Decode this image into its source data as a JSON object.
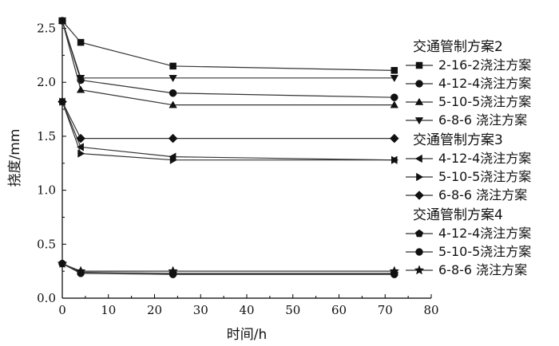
{
  "chart_data": {
    "type": "line",
    "xlabel": "时间/h",
    "ylabel": "挠度/mm",
    "xlim": [
      0,
      80
    ],
    "ylim": [
      0,
      2.6
    ],
    "x_ticks": [
      0,
      10,
      20,
      30,
      40,
      50,
      60,
      70,
      80
    ],
    "y_ticks": [
      0.0,
      0.5,
      1.0,
      1.5,
      2.0,
      2.5
    ],
    "y_tick_labels": [
      "0.0",
      "0.5",
      "1.0",
      "1.5",
      "2.0",
      "2.5"
    ],
    "x_tick_labels": [
      "0",
      "10",
      "20",
      "30",
      "40",
      "50",
      "60",
      "70",
      "80"
    ],
    "grid": false,
    "legend_position": "right",
    "groups": [
      {
        "title": "交通管制方案2",
        "series": [
          {
            "name": "2-16-2浇注方案",
            "marker": "square",
            "x": [
              0,
              4,
              24,
              72
            ],
            "y": [
              2.57,
              2.37,
              2.15,
              2.11
            ]
          },
          {
            "name": "4-12-4浇注方案",
            "marker": "circle",
            "x": [
              0,
              4,
              24,
              72
            ],
            "y": [
              2.57,
              2.02,
              1.9,
              1.86
            ]
          },
          {
            "name": "5-10-5浇注方案",
            "marker": "triangle-up",
            "x": [
              0,
              4,
              24,
              72
            ],
            "y": [
              2.57,
              1.93,
              1.79,
              1.79
            ]
          },
          {
            "name": "6-8-6  浇注方案",
            "marker": "triangle-down",
            "x": [
              0,
              4,
              24,
              72
            ],
            "y": [
              2.57,
              2.04,
              2.04,
              2.04
            ]
          }
        ]
      },
      {
        "title": "交通管制方案3",
        "series": [
          {
            "name": "4-12-4浇注方案",
            "marker": "triangle-left",
            "x": [
              0,
              4,
              24,
              72
            ],
            "y": [
              1.82,
              1.4,
              1.31,
              1.28
            ]
          },
          {
            "name": "5-10-5浇注方案",
            "marker": "triangle-right",
            "x": [
              0,
              4,
              24,
              72
            ],
            "y": [
              1.82,
              1.34,
              1.28,
              1.28
            ]
          },
          {
            "name": "6-8-6  浇注方案",
            "marker": "diamond",
            "x": [
              0,
              4,
              24,
              72
            ],
            "y": [
              1.82,
              1.48,
              1.48,
              1.48
            ]
          }
        ]
      },
      {
        "title": "交通管制方案4",
        "series": [
          {
            "name": "4-12-4浇注方案",
            "marker": "pentagon",
            "x": [
              0,
              4,
              24,
              72
            ],
            "y": [
              0.32,
              0.24,
              0.23,
              0.23
            ]
          },
          {
            "name": "5-10-5浇注方案",
            "marker": "hexagon",
            "x": [
              0,
              4,
              24,
              72
            ],
            "y": [
              0.32,
              0.23,
              0.22,
              0.22
            ]
          },
          {
            "name": "6-8-6 浇注方案",
            "marker": "star",
            "x": [
              0,
              4,
              24,
              72
            ],
            "y": [
              0.32,
              0.25,
              0.25,
              0.25
            ]
          }
        ]
      }
    ]
  },
  "colors": {
    "line": "#333333",
    "marker": "#111111",
    "axis": "#000000"
  }
}
